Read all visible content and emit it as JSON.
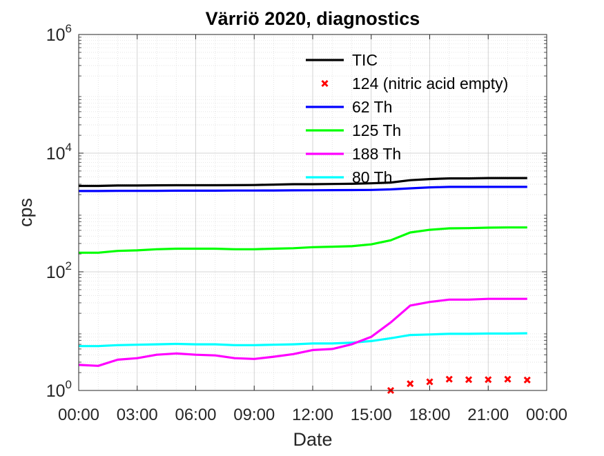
{
  "chart_data": {
    "type": "line",
    "title": "Värriö 2020, diagnostics",
    "xlabel": "Date",
    "ylabel": "cps",
    "y_scale": "log",
    "ylim": [
      1,
      1000000
    ],
    "y_ticks": [
      {
        "value": 1,
        "base": "10",
        "exp": "0"
      },
      {
        "value": 100,
        "base": "10",
        "exp": "2"
      },
      {
        "value": 10000,
        "base": "10",
        "exp": "4"
      },
      {
        "value": 1000000,
        "base": "10",
        "exp": "6"
      }
    ],
    "xlim_hours": [
      0,
      24
    ],
    "x_tick_labels": [
      "00:00",
      "03:00",
      "06:00",
      "09:00",
      "12:00",
      "15:00",
      "18:00",
      "21:00",
      "00:00"
    ],
    "grid": true,
    "legend_position": "top-right",
    "series": [
      {
        "name": "TIC",
        "color": "#000000",
        "style": "line",
        "x": [
          "00:00",
          "01:00",
          "02:00",
          "03:00",
          "04:00",
          "05:00",
          "06:00",
          "07:00",
          "08:00",
          "09:00",
          "10:00",
          "11:00",
          "12:00",
          "13:00",
          "14:00",
          "15:00",
          "16:00",
          "17:00",
          "18:00",
          "19:00",
          "20:00",
          "21:00",
          "22:00",
          "23:00"
        ],
        "values": [
          2800,
          2800,
          2850,
          2850,
          2870,
          2880,
          2880,
          2880,
          2890,
          2900,
          2950,
          3000,
          3000,
          3020,
          3050,
          3100,
          3200,
          3500,
          3650,
          3750,
          3750,
          3800,
          3800,
          3800
        ]
      },
      {
        "name": "124 (nitric acid empty)",
        "color": "#ff0000",
        "style": "marker-x",
        "x": [
          "16:00",
          "17:00",
          "18:00",
          "19:00",
          "20:00",
          "21:00",
          "22:00",
          "23:00"
        ],
        "values": [
          1.0,
          1.3,
          1.4,
          1.55,
          1.52,
          1.52,
          1.55,
          1.5
        ]
      },
      {
        "name": "62 Th",
        "color": "#0000ff",
        "style": "line",
        "x": [
          "00:00",
          "01:00",
          "02:00",
          "03:00",
          "04:00",
          "05:00",
          "06:00",
          "07:00",
          "08:00",
          "09:00",
          "10:00",
          "11:00",
          "12:00",
          "13:00",
          "14:00",
          "15:00",
          "16:00",
          "17:00",
          "18:00",
          "19:00",
          "20:00",
          "21:00",
          "22:00",
          "23:00"
        ],
        "values": [
          2300,
          2300,
          2320,
          2320,
          2320,
          2330,
          2330,
          2330,
          2340,
          2340,
          2350,
          2360,
          2370,
          2380,
          2390,
          2400,
          2450,
          2550,
          2650,
          2700,
          2700,
          2700,
          2700,
          2700
        ]
      },
      {
        "name": "125 Th",
        "color": "#00ff00",
        "style": "line",
        "x": [
          "00:00",
          "01:00",
          "02:00",
          "03:00",
          "04:00",
          "05:00",
          "06:00",
          "07:00",
          "08:00",
          "09:00",
          "10:00",
          "11:00",
          "12:00",
          "13:00",
          "14:00",
          "15:00",
          "16:00",
          "17:00",
          "18:00",
          "19:00",
          "20:00",
          "21:00",
          "22:00",
          "23:00"
        ],
        "values": [
          210,
          210,
          225,
          230,
          240,
          245,
          245,
          245,
          240,
          240,
          245,
          250,
          260,
          265,
          270,
          290,
          340,
          460,
          510,
          540,
          545,
          555,
          560,
          560
        ]
      },
      {
        "name": "188 Th",
        "color": "#ff00ff",
        "style": "line",
        "x": [
          "00:00",
          "01:00",
          "02:00",
          "03:00",
          "04:00",
          "05:00",
          "06:00",
          "07:00",
          "08:00",
          "09:00",
          "10:00",
          "11:00",
          "12:00",
          "13:00",
          "14:00",
          "15:00",
          "16:00",
          "17:00",
          "18:00",
          "19:00",
          "20:00",
          "21:00",
          "22:00",
          "23:00"
        ],
        "values": [
          2.7,
          2.6,
          3.3,
          3.5,
          4.0,
          4.2,
          4.0,
          3.9,
          3.5,
          3.4,
          3.7,
          4.1,
          4.8,
          5.0,
          6.0,
          8.0,
          14,
          27,
          31,
          34,
          34,
          35,
          35,
          35
        ]
      },
      {
        "name": "80 Th",
        "color": "#00ffff",
        "style": "line",
        "x": [
          "00:00",
          "01:00",
          "02:00",
          "03:00",
          "04:00",
          "05:00",
          "06:00",
          "07:00",
          "08:00",
          "09:00",
          "10:00",
          "11:00",
          "12:00",
          "13:00",
          "14:00",
          "15:00",
          "16:00",
          "17:00",
          "18:00",
          "19:00",
          "20:00",
          "21:00",
          "22:00",
          "23:00"
        ],
        "values": [
          5.6,
          5.6,
          5.8,
          5.9,
          6.0,
          6.1,
          6.0,
          6.0,
          5.8,
          5.8,
          5.9,
          6.0,
          6.2,
          6.2,
          6.4,
          6.8,
          7.6,
          8.6,
          8.8,
          9.0,
          9.0,
          9.1,
          9.1,
          9.2
        ]
      }
    ]
  }
}
